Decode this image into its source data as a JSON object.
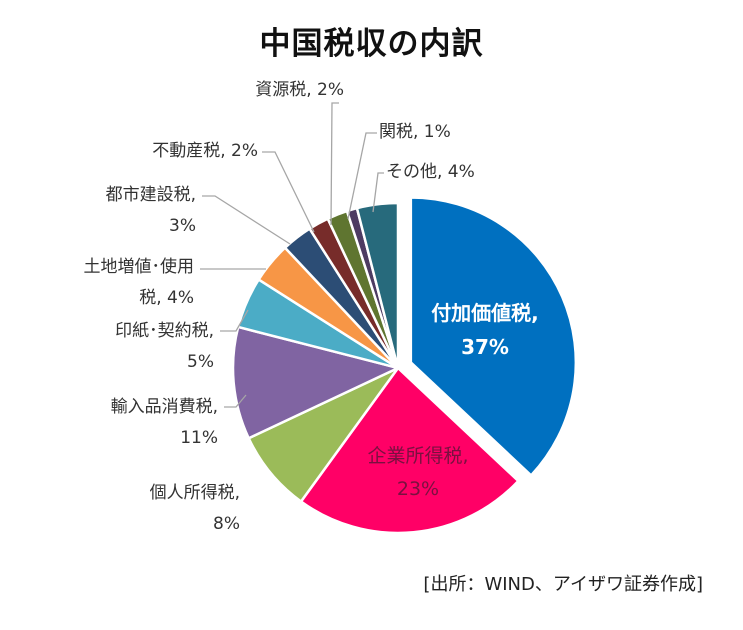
{
  "chart_data": {
    "type": "pie",
    "title": "中国税収の内訳",
    "slices": [
      {
        "name": "付加価値税",
        "value": 37,
        "label_line1": "付加価値税,",
        "label_line2": "37%",
        "color": "#0070C0",
        "exploded": true
      },
      {
        "name": "企業所得税",
        "value": 23,
        "label_line1": "企業所得税,",
        "label_line2": "23%",
        "color": "#FF0066"
      },
      {
        "name": "個人所得税",
        "value": 8,
        "label_line1": "個人所得税,",
        "label_line2": "8%",
        "color": "#9BBB59"
      },
      {
        "name": "輸入品消費税",
        "value": 11,
        "label_line1": "輸入品消費税,",
        "label_line2": "11%",
        "color": "#8064A2"
      },
      {
        "name": "印紙・契約税",
        "value": 5,
        "label_line1": "印紙･契約税,",
        "label_line2": "5%",
        "color": "#4BACC6"
      },
      {
        "name": "土地増値・使用税",
        "value": 4,
        "label_line1": "土地増値･使用",
        "label_line2": "税, 4%",
        "color": "#F79646"
      },
      {
        "name": "都市建設税",
        "value": 3,
        "label_line1": "都市建設税,",
        "label_line2": "3%",
        "color": "#2C4D75"
      },
      {
        "name": "不動産税",
        "value": 2,
        "label_line1": "不動産税, 2%",
        "label_line2": "",
        "color": "#772C2A"
      },
      {
        "name": "資源税",
        "value": 2,
        "label_line1": "資源税, 2%",
        "label_line2": "",
        "color": "#5F7530"
      },
      {
        "name": "関税",
        "value": 1,
        "label_line1": "関税, 1%",
        "label_line2": "",
        "color": "#4D3B62"
      },
      {
        "name": "その他",
        "value": 4,
        "label_line1": "その他, 4%",
        "label_line2": "",
        "color": "#276A7C"
      }
    ]
  },
  "source": "[出所：WIND、アイザワ証券作成]"
}
